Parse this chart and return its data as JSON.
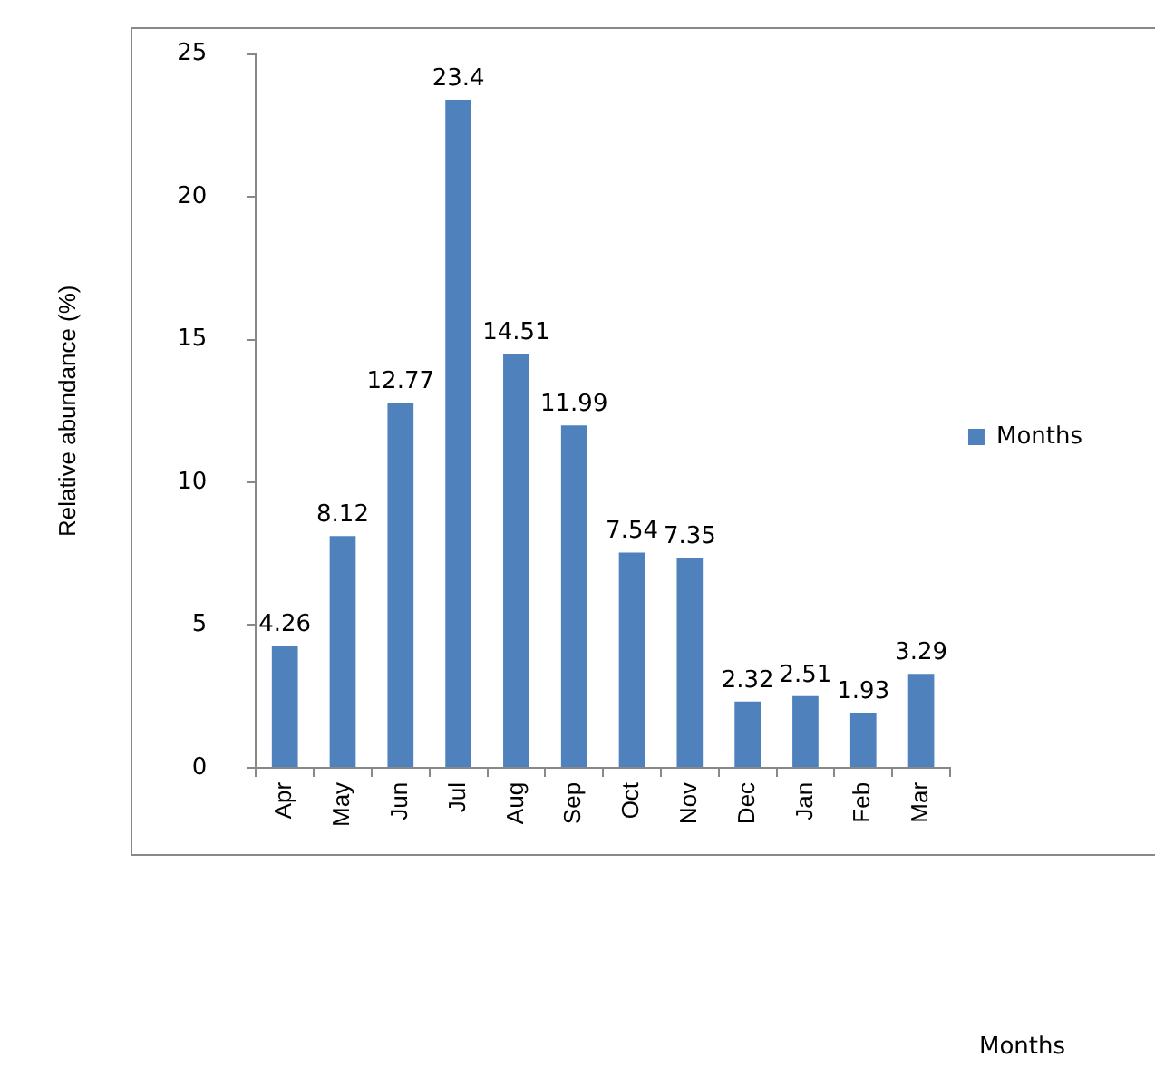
{
  "chart_data": {
    "type": "bar",
    "annotations": [
      "Months"
    ],
    "ylabel": "Relative abundance (%)",
    "categories": [
      "Apr",
      "May",
      "Jun",
      "Jul",
      "Aug",
      "Sep",
      "Oct",
      "Nov",
      "Dec",
      "Jan",
      "Feb",
      "Mar"
    ],
    "series": [
      {
        "name": "Months",
        "color": "#4f81bd",
        "values": [
          4.26,
          8.12,
          12.77,
          23.4,
          14.51,
          11.99,
          7.54,
          7.35,
          2.32,
          2.51,
          1.93,
          3.29
        ]
      }
    ],
    "ylim": [
      0,
      25
    ],
    "yticks": [
      0,
      5,
      10,
      15,
      20,
      25
    ],
    "grid": false,
    "legend": "right",
    "data_labels": true
  }
}
